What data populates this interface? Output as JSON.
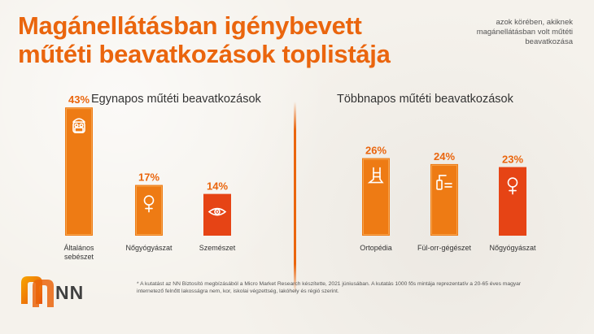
{
  "header": {
    "title": "Magánellátásban igénybevett műtéti beavatkozások toplistája",
    "note": "azok körében, akiknek magánellátásban volt műtéti beavatkozása"
  },
  "chart_data": [
    {
      "type": "bar",
      "title": "Egynapos műtéti beavatkozások",
      "categories": [
        "Általános sebészet",
        "Nőgyógyászat",
        "Szemészet"
      ],
      "values": [
        43,
        17,
        14
      ],
      "value_labels": [
        "43%",
        "17%",
        "14%"
      ],
      "icons": [
        "surgeon-icon",
        "female-symbol-icon",
        "eye-icon"
      ],
      "ylim": [
        0,
        45
      ],
      "grid": false
    },
    {
      "type": "bar",
      "title": "Többnapos műtéti beavatkozások",
      "categories": [
        "Ortopédia",
        "Fül-orr-gégészet",
        "Nőgyógyászat"
      ],
      "values": [
        26,
        24,
        23
      ],
      "value_labels": [
        "26%",
        "24%",
        "23%"
      ],
      "icons": [
        "cast-leg-icon",
        "ear-spray-icon",
        "female-symbol-icon"
      ],
      "ylim": [
        0,
        45
      ],
      "grid": false
    }
  ],
  "colors": {
    "accent": "#ea650d",
    "bar_orange": "#ee7b14",
    "bar_red": "#e64415"
  },
  "footnote": "* A kutatást az NN Biztosító megbízásából a Micro Market Research készítette, 2021 júniusában. A kutatás 1000 fős mintája reprezentatív a 20-65 éves magyar internetező felnőtt lakosságra nem, kor, iskolai végzettség, lakóhely és régió szerint.",
  "brand": {
    "name": "NN"
  }
}
